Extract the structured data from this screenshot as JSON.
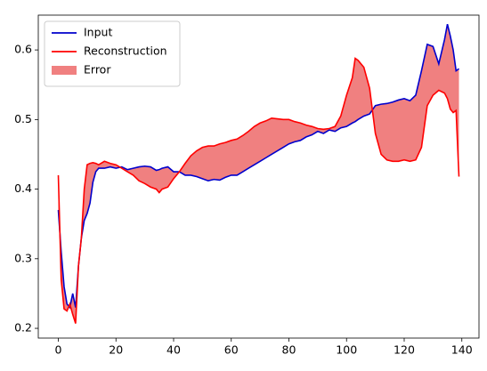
{
  "chart_data": {
    "type": "line",
    "x": [
      0,
      1,
      2,
      3,
      4,
      5,
      6,
      7,
      8,
      9,
      10,
      11,
      12,
      13,
      14,
      16,
      18,
      20,
      22,
      24,
      26,
      28,
      30,
      32,
      34,
      35,
      36,
      38,
      40,
      42,
      44,
      46,
      48,
      50,
      52,
      54,
      56,
      58,
      60,
      62,
      64,
      66,
      68,
      70,
      72,
      74,
      76,
      78,
      80,
      82,
      84,
      86,
      88,
      90,
      92,
      94,
      96,
      98,
      100,
      102,
      103,
      104,
      106,
      108,
      110,
      112,
      114,
      116,
      118,
      120,
      122,
      124,
      126,
      128,
      130,
      132,
      134,
      135,
      136,
      137,
      138,
      139
    ],
    "series": [
      {
        "name": "Input",
        "color": "#0000cc",
        "values": [
          0.37,
          0.31,
          0.26,
          0.235,
          0.23,
          0.25,
          0.23,
          0.29,
          0.33,
          0.355,
          0.365,
          0.38,
          0.41,
          0.425,
          0.43,
          0.43,
          0.432,
          0.43,
          0.432,
          0.428,
          0.43,
          0.432,
          0.433,
          0.432,
          0.427,
          0.428,
          0.43,
          0.432,
          0.425,
          0.425,
          0.42,
          0.42,
          0.418,
          0.415,
          0.412,
          0.414,
          0.413,
          0.417,
          0.42,
          0.42,
          0.425,
          0.43,
          0.435,
          0.44,
          0.445,
          0.45,
          0.455,
          0.46,
          0.465,
          0.468,
          0.47,
          0.475,
          0.478,
          0.483,
          0.48,
          0.485,
          0.483,
          0.488,
          0.49,
          0.495,
          0.497,
          0.5,
          0.505,
          0.508,
          0.52,
          0.522,
          0.523,
          0.525,
          0.528,
          0.53,
          0.527,
          0.535,
          0.57,
          0.608,
          0.605,
          0.58,
          0.615,
          0.637,
          0.62,
          0.6,
          0.57,
          0.573
        ]
      },
      {
        "name": "Reconstruction",
        "color": "#ff0000",
        "values": [
          0.42,
          0.27,
          0.228,
          0.225,
          0.235,
          0.22,
          0.207,
          0.29,
          0.33,
          0.4,
          0.435,
          0.437,
          0.438,
          0.437,
          0.435,
          0.44,
          0.437,
          0.435,
          0.43,
          0.425,
          0.42,
          0.412,
          0.408,
          0.403,
          0.4,
          0.395,
          0.4,
          0.403,
          0.415,
          0.425,
          0.437,
          0.448,
          0.455,
          0.46,
          0.462,
          0.462,
          0.465,
          0.467,
          0.47,
          0.472,
          0.477,
          0.483,
          0.49,
          0.495,
          0.498,
          0.502,
          0.501,
          0.5,
          0.5,
          0.497,
          0.495,
          0.492,
          0.49,
          0.487,
          0.486,
          0.487,
          0.49,
          0.505,
          0.535,
          0.56,
          0.588,
          0.585,
          0.575,
          0.545,
          0.48,
          0.45,
          0.442,
          0.44,
          0.44,
          0.442,
          0.44,
          0.442,
          0.46,
          0.52,
          0.535,
          0.542,
          0.538,
          0.53,
          0.515,
          0.51,
          0.513,
          0.418
        ]
      }
    ],
    "fill": {
      "name": "Error",
      "color": "#f08080"
    },
    "xlim": [
      -6.95,
      145.95
    ],
    "xticks": [
      0,
      20,
      40,
      60,
      80,
      100,
      120,
      140
    ],
    "ylim": [
      0.186,
      0.65
    ],
    "yticks": [
      0.2,
      0.3,
      0.4,
      0.5,
      0.6
    ],
    "legend": "upper left"
  }
}
